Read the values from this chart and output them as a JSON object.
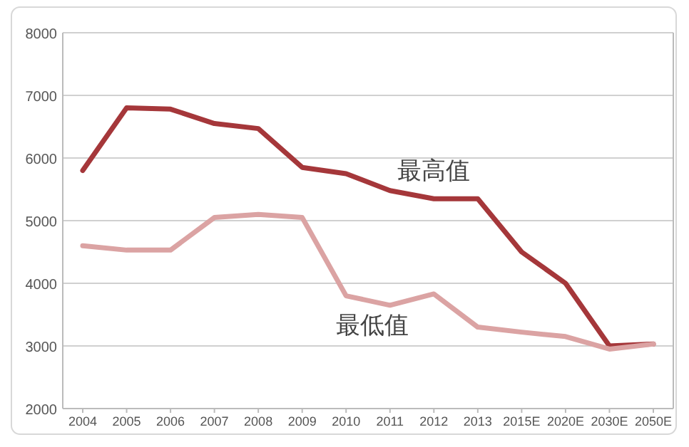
{
  "chart_data": {
    "type": "line",
    "categories": [
      "2004",
      "2005",
      "2006",
      "2007",
      "2008",
      "2009",
      "2010",
      "2011",
      "2012",
      "2013",
      "2015E",
      "2020E",
      "2030E",
      "2050E"
    ],
    "series": [
      {
        "name": "最高值",
        "color": "#a5373a",
        "values": [
          5800,
          6800,
          6780,
          6550,
          6470,
          5850,
          5750,
          5480,
          5350,
          5350,
          4500,
          4000,
          3000,
          3030
        ]
      },
      {
        "name": "最低值",
        "color": "#dba3a3",
        "values": [
          4600,
          4530,
          4530,
          5050,
          5100,
          5050,
          3800,
          3650,
          3830,
          3300,
          3220,
          3150,
          2950,
          3030
        ]
      }
    ],
    "ylim": [
      2000,
      8000
    ],
    "yticks": [
      2000,
      3000,
      4000,
      5000,
      6000,
      7000,
      8000
    ],
    "grid": "y",
    "marker": "none",
    "line_style": "solid"
  }
}
